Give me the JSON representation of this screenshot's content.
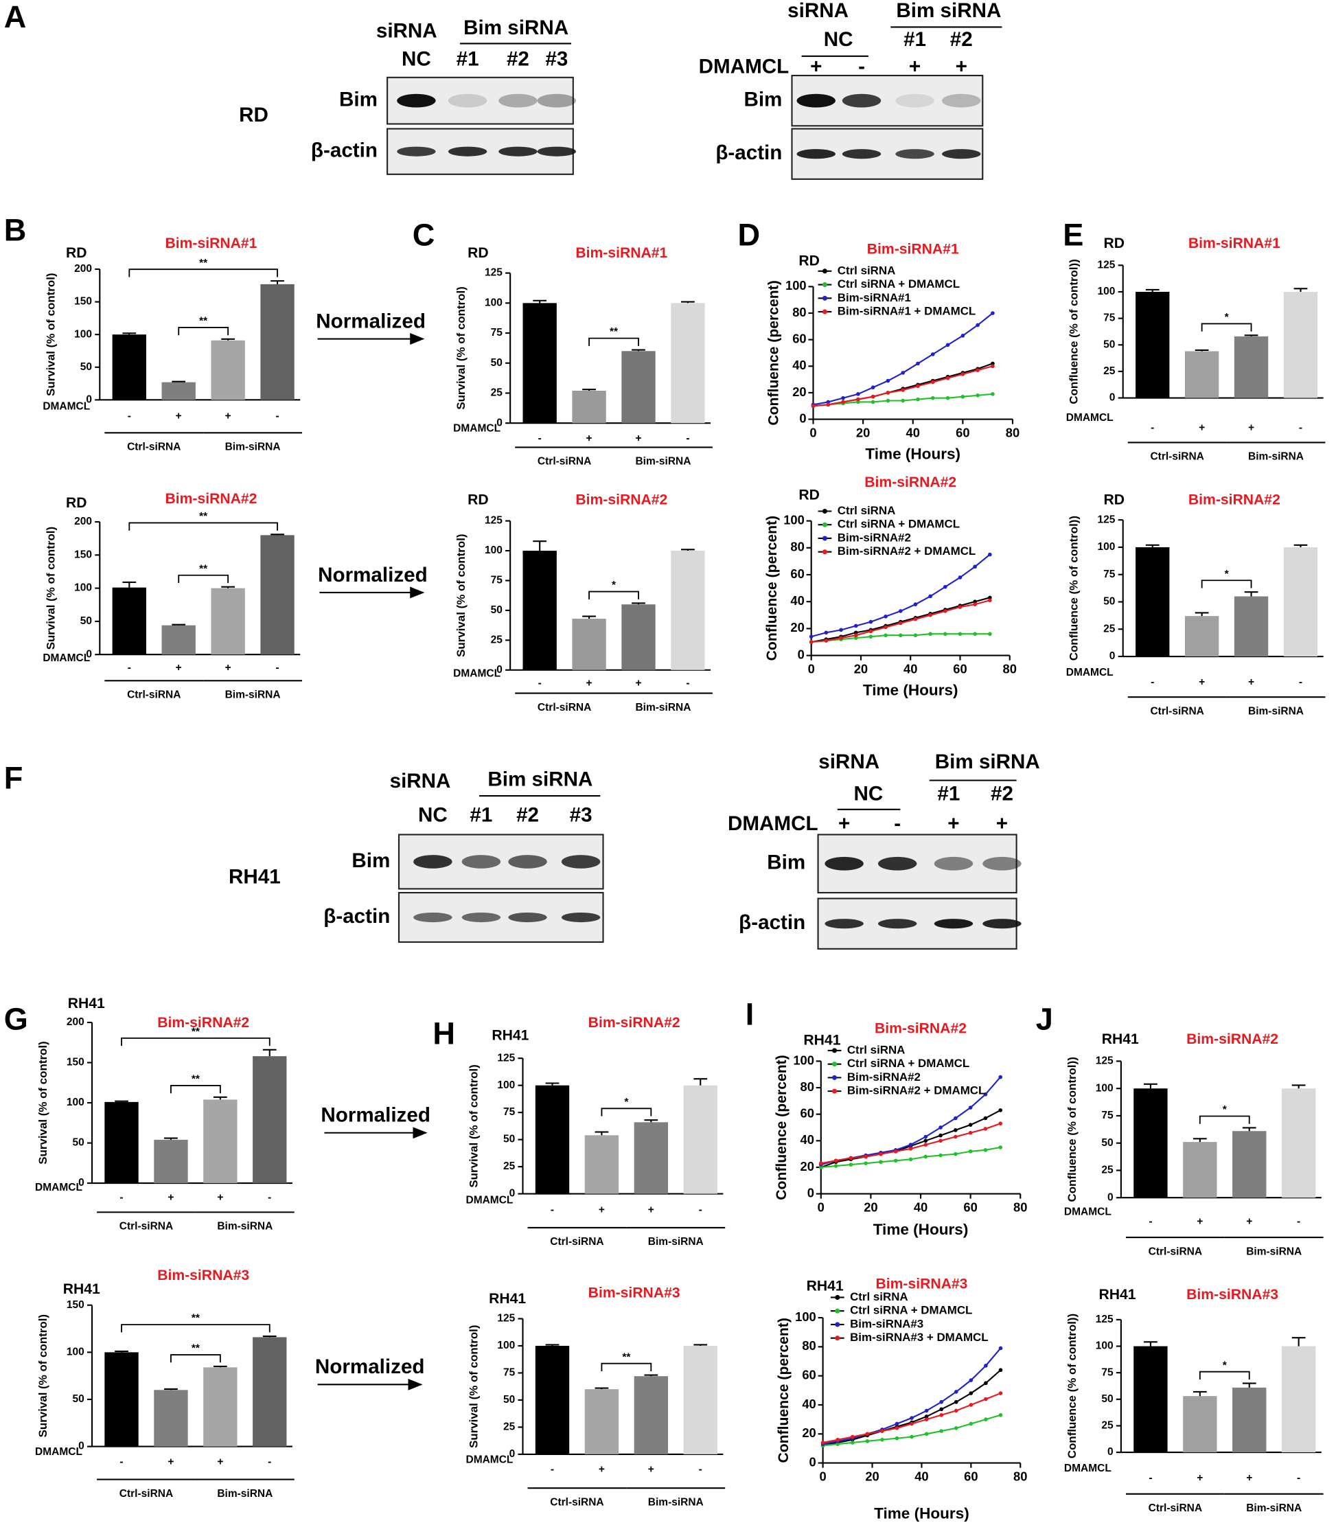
{
  "panel_letters": [
    "A",
    "B",
    "C",
    "D",
    "E",
    "F",
    "G",
    "H",
    "I",
    "J"
  ],
  "normalized": [
    "Normalized",
    "Normalized",
    "Normalized",
    "Normalized"
  ],
  "blots": [
    {
      "cell_line": "RD",
      "header": "siRNA",
      "group": "Bim siRNA",
      "lanes": [
        "NC",
        "#1",
        "#2",
        "#3"
      ],
      "rows": [
        "Bim",
        "β-actin"
      ]
    },
    {
      "header": "siRNA",
      "group": "Bim siRNA",
      "lanes": [
        "NC",
        "#1",
        "#2"
      ],
      "treatment": "DMAMCL",
      "signs": [
        "+",
        "-",
        "+",
        "+"
      ],
      "rows": [
        "Bim",
        "β-actin"
      ]
    },
    {
      "cell_line": "RH41",
      "header": "siRNA",
      "group": "Bim siRNA",
      "lanes": [
        "NC",
        "#1",
        "#2",
        "#3"
      ],
      "rows": [
        "Bim",
        "β-actin"
      ]
    },
    {
      "header": "siRNA",
      "group": "Bim siRNA",
      "lanes": [
        "NC",
        "#1",
        "#2"
      ],
      "treatment": "DMAMCL",
      "signs": [
        "+",
        "-",
        "+",
        "+"
      ],
      "rows": [
        "Bim",
        "β-actin"
      ]
    }
  ],
  "chart_data": [
    {
      "type": "bar",
      "label": "RD",
      "title": "Bim-siRNA#1",
      "title_color": "#e8191f",
      "ylabel": "Survival (% of control)",
      "ylim": [
        0,
        200
      ],
      "yticks": [
        0,
        50,
        100,
        150,
        200
      ],
      "categories": [
        "-",
        "+",
        "+",
        "-"
      ],
      "row_label": "DMAMCL",
      "groups": [
        "Ctrl-siRNA",
        "Bim-siRNA"
      ],
      "values": [
        100,
        27,
        91,
        177
      ],
      "errors": [
        2,
        1,
        2,
        5
      ],
      "colors": [
        "#000000",
        "#7f7f7f",
        "#a6a6a6",
        "#626262"
      ],
      "brackets": [
        {
          "from": 0,
          "to": 3,
          "label": "**"
        },
        {
          "from": 1,
          "to": 2,
          "label": "**"
        }
      ]
    },
    {
      "type": "bar",
      "label": "RD",
      "title": "Bim-siRNA#1",
      "title_color": "#e8191f",
      "ylabel": "Survival (% of control)",
      "ylim": [
        0,
        125
      ],
      "yticks": [
        0,
        25,
        50,
        75,
        100,
        125
      ],
      "categories": [
        "-",
        "+",
        "+",
        "-"
      ],
      "row_label": "DMAMCL",
      "groups": [
        "Ctrl-siRNA",
        "Bim-siRNA"
      ],
      "values": [
        100,
        27,
        60,
        100
      ],
      "errors": [
        2,
        1,
        1,
        1
      ],
      "colors": [
        "#000000",
        "#9a9a9a",
        "#767676",
        "#d9d9d9"
      ],
      "brackets": [
        {
          "from": 1,
          "to": 2,
          "label": "**"
        }
      ]
    },
    {
      "type": "line",
      "label": "RD",
      "title": "Bim-siRNA#1",
      "title_color": "#e8191f",
      "xlabel": "Time (Hours)",
      "ylabel": "Confluence (percent)",
      "x": [
        0,
        6,
        12,
        18,
        24,
        30,
        36,
        42,
        48,
        54,
        60,
        66,
        72
      ],
      "xlim": [
        0,
        80
      ],
      "xticks": [
        0,
        20,
        40,
        60,
        80
      ],
      "ylim": [
        0,
        100
      ],
      "yticks": [
        0,
        20,
        40,
        60,
        80,
        100
      ],
      "series": [
        {
          "name": "Ctrl siRNA",
          "color": "#000000",
          "values": [
            10,
            11,
            13,
            15,
            17,
            20,
            23,
            26,
            29,
            32,
            35,
            38,
            42
          ]
        },
        {
          "name": "Ctrl siRNA + DMAMCL",
          "color": "#22c02a",
          "values": [
            10,
            11,
            12,
            13,
            13,
            14,
            14,
            15,
            16,
            16,
            17,
            18,
            19
          ]
        },
        {
          "name": "Bim-siRNA#1",
          "color": "#1f22c8",
          "values": [
            11,
            13,
            16,
            19,
            24,
            29,
            35,
            42,
            49,
            56,
            63,
            71,
            80
          ]
        },
        {
          "name": "Bim-siRNA#1 + DMAMCL",
          "color": "#e8191f",
          "values": [
            10,
            11,
            13,
            15,
            17,
            20,
            22,
            25,
            28,
            31,
            34,
            37,
            40
          ]
        }
      ]
    },
    {
      "type": "bar",
      "label": "RD",
      "title": "Bim-siRNA#1",
      "title_color": "#e8191f",
      "ylabel": "Confluence (% of control))",
      "ylim": [
        0,
        125
      ],
      "yticks": [
        0,
        25,
        50,
        75,
        100,
        125
      ],
      "categories": [
        "-",
        "+",
        "+",
        "-"
      ],
      "row_label": "DMAMCL",
      "groups": [
        "Ctrl-siRNA",
        "Bim-siRNA"
      ],
      "values": [
        100,
        44,
        58,
        100
      ],
      "errors": [
        2,
        1,
        1,
        3
      ],
      "colors": [
        "#000000",
        "#a0a0a0",
        "#7f7f7f",
        "#d9d9d9"
      ],
      "brackets": [
        {
          "from": 1,
          "to": 2,
          "label": "*"
        }
      ]
    },
    {
      "type": "bar",
      "label": "RD",
      "title": "Bim-siRNA#2",
      "title_color": "#e8191f",
      "ylabel": "Survival (% of control)",
      "ylim": [
        0,
        200
      ],
      "yticks": [
        0,
        50,
        100,
        150,
        200
      ],
      "categories": [
        "-",
        "+",
        "+",
        "-"
      ],
      "row_label": "DMAMCL",
      "groups": [
        "Ctrl-siRNA",
        "Bim-siRNA"
      ],
      "values": [
        101,
        44,
        100,
        180
      ],
      "errors": [
        8,
        1,
        2,
        1
      ],
      "colors": [
        "#000000",
        "#7f7f7f",
        "#a6a6a6",
        "#626262"
      ],
      "brackets": [
        {
          "from": 0,
          "to": 3,
          "label": "**"
        },
        {
          "from": 1,
          "to": 2,
          "label": "**"
        }
      ]
    },
    {
      "type": "bar",
      "label": "RD",
      "title": "Bim-siRNA#2",
      "title_color": "#e8191f",
      "ylabel": "Survival (% of control)",
      "ylim": [
        0,
        125
      ],
      "yticks": [
        0,
        25,
        50,
        75,
        100,
        125
      ],
      "categories": [
        "-",
        "+",
        "+",
        "-"
      ],
      "row_label": "DMAMCL",
      "groups": [
        "Ctrl-siRNA",
        "Bim-siRNA"
      ],
      "values": [
        100,
        43,
        55,
        100
      ],
      "errors": [
        8,
        2,
        1,
        1
      ],
      "colors": [
        "#000000",
        "#9a9a9a",
        "#767676",
        "#d9d9d9"
      ],
      "brackets": [
        {
          "from": 1,
          "to": 2,
          "label": "*"
        }
      ]
    },
    {
      "type": "line",
      "label": "RD",
      "title": "Bim-siRNA#2",
      "title_color": "#e8191f",
      "xlabel": "Time (Hours)",
      "ylabel": "Confluence (percent)",
      "x": [
        0,
        6,
        12,
        18,
        24,
        30,
        36,
        42,
        48,
        54,
        60,
        66,
        72
      ],
      "xlim": [
        0,
        80
      ],
      "xticks": [
        0,
        20,
        40,
        60,
        80
      ],
      "ylim": [
        0,
        100
      ],
      "yticks": [
        0,
        20,
        40,
        60,
        80,
        100
      ],
      "series": [
        {
          "name": "Ctrl siRNA",
          "color": "#000000",
          "values": [
            10,
            12,
            14,
            17,
            19,
            22,
            25,
            28,
            31,
            34,
            37,
            40,
            43
          ]
        },
        {
          "name": "Ctrl siRNA + DMAMCL",
          "color": "#22c02a",
          "values": [
            10,
            11,
            12,
            13,
            14,
            15,
            15,
            15,
            16,
            16,
            16,
            16,
            16
          ]
        },
        {
          "name": "Bim-siRNA#2",
          "color": "#1f22c8",
          "values": [
            14,
            17,
            19,
            22,
            25,
            29,
            33,
            38,
            44,
            51,
            58,
            66,
            75
          ]
        },
        {
          "name": "Bim-siRNA#2 + DMAMCL",
          "color": "#e8191f",
          "values": [
            10,
            11,
            13,
            15,
            18,
            21,
            24,
            27,
            30,
            33,
            36,
            38,
            41
          ]
        }
      ]
    },
    {
      "type": "bar",
      "label": "RD",
      "title": "Bim-siRNA#2",
      "title_color": "#e8191f",
      "ylabel": "Confluence (% of control))",
      "ylim": [
        0,
        125
      ],
      "yticks": [
        0,
        25,
        50,
        75,
        100,
        125
      ],
      "categories": [
        "-",
        "+",
        "+",
        "-"
      ],
      "row_label": "DMAMCL",
      "groups": [
        "Ctrl-siRNA",
        "Bim-siRNA"
      ],
      "values": [
        100,
        37,
        55,
        100
      ],
      "errors": [
        2,
        3,
        4,
        2
      ],
      "colors": [
        "#000000",
        "#a0a0a0",
        "#7f7f7f",
        "#d9d9d9"
      ],
      "brackets": [
        {
          "from": 1,
          "to": 2,
          "label": "*"
        }
      ]
    },
    {
      "type": "bar",
      "label": "RH41",
      "title": "Bim-siRNA#2",
      "title_color": "#e8191f",
      "ylabel": "Survival (% of control)",
      "ylim": [
        0,
        200
      ],
      "yticks": [
        0,
        50,
        100,
        150,
        200
      ],
      "categories": [
        "-",
        "+",
        "+",
        "-"
      ],
      "row_label": "DMAMCL",
      "groups": [
        "Ctrl-siRNA",
        "Bim-siRNA"
      ],
      "values": [
        101,
        54,
        104,
        158
      ],
      "errors": [
        1,
        2,
        3,
        8
      ],
      "colors": [
        "#000000",
        "#7f7f7f",
        "#a6a6a6",
        "#626262"
      ],
      "brackets": [
        {
          "from": 0,
          "to": 3,
          "label": "**"
        },
        {
          "from": 1,
          "to": 2,
          "label": "**"
        }
      ]
    },
    {
      "type": "bar",
      "label": "RH41",
      "title": "Bim-siRNA#2",
      "title_color": "#e8191f",
      "ylabel": "Survival (% of control)",
      "ylim": [
        0,
        125
      ],
      "yticks": [
        0,
        25,
        50,
        75,
        100,
        125
      ],
      "categories": [
        "-",
        "+",
        "+",
        "-"
      ],
      "row_label": "DMAMCL",
      "groups": [
        "Ctrl-siRNA",
        "Bim-siRNA"
      ],
      "values": [
        100,
        54,
        66,
        100
      ],
      "errors": [
        2,
        3,
        2,
        6
      ],
      "colors": [
        "#000000",
        "#a6a6a6",
        "#7f7f7f",
        "#d9d9d9"
      ],
      "brackets": [
        {
          "from": 1,
          "to": 2,
          "label": "*"
        }
      ]
    },
    {
      "type": "line",
      "label": "RH41",
      "title": "Bim-siRNA#2",
      "title_color": "#e8191f",
      "xlabel": "Time (Hours)",
      "ylabel": "Confluence (percent)",
      "x": [
        0,
        6,
        12,
        18,
        24,
        30,
        36,
        42,
        48,
        54,
        60,
        66,
        72
      ],
      "xlim": [
        0,
        80
      ],
      "xticks": [
        0,
        20,
        40,
        60,
        80
      ],
      "ylim": [
        0,
        100
      ],
      "yticks": [
        0,
        20,
        40,
        60,
        80,
        100
      ],
      "series": [
        {
          "name": "Ctrl siRNA",
          "color": "#000000",
          "values": [
            20,
            24,
            26,
            28,
            30,
            32,
            36,
            40,
            44,
            48,
            52,
            57,
            63
          ]
        },
        {
          "name": "Ctrl siRNA + DMAMCL",
          "color": "#22c02a",
          "values": [
            20,
            21,
            22,
            23,
            24,
            25,
            26,
            28,
            29,
            30,
            32,
            33,
            35
          ]
        },
        {
          "name": "Bim-siRNA#2",
          "color": "#1f22c8",
          "values": [
            22,
            25,
            27,
            29,
            31,
            33,
            37,
            43,
            50,
            57,
            65,
            75,
            88
          ]
        },
        {
          "name": "Bim-siRNA#2 + DMAMCL",
          "color": "#e8191f",
          "values": [
            23,
            25,
            27,
            28,
            30,
            32,
            34,
            37,
            40,
            43,
            46,
            49,
            53
          ]
        }
      ]
    },
    {
      "type": "bar",
      "label": "RH41",
      "title": "Bim-siRNA#2",
      "title_color": "#e8191f",
      "ylabel": "Confluence (% of control))",
      "ylim": [
        0,
        125
      ],
      "yticks": [
        0,
        25,
        50,
        75,
        100,
        125
      ],
      "categories": [
        "-",
        "+",
        "+",
        "-"
      ],
      "row_label": "DMAMCL",
      "groups": [
        "Ctrl-siRNA",
        "Bim-siRNA"
      ],
      "values": [
        100,
        51,
        61,
        100
      ],
      "errors": [
        4,
        3,
        3,
        3
      ],
      "colors": [
        "#000000",
        "#a0a0a0",
        "#7f7f7f",
        "#d9d9d9"
      ],
      "brackets": [
        {
          "from": 1,
          "to": 2,
          "label": "*"
        }
      ]
    },
    {
      "type": "bar",
      "label": "RH41",
      "title": "Bim-siRNA#3",
      "title_color": "#e8191f",
      "ylabel": "Survival (% of control)",
      "ylim": [
        0,
        150
      ],
      "yticks": [
        0,
        50,
        100,
        150
      ],
      "categories": [
        "-",
        "+",
        "+",
        "-"
      ],
      "row_label": "DMAMCL",
      "groups": [
        "Ctrl-siRNA",
        "Bim-siRNA"
      ],
      "values": [
        100,
        60,
        84,
        116
      ],
      "errors": [
        1,
        1,
        1,
        1
      ],
      "colors": [
        "#000000",
        "#7f7f7f",
        "#a6a6a6",
        "#626262"
      ],
      "brackets": [
        {
          "from": 0,
          "to": 3,
          "label": "**"
        },
        {
          "from": 1,
          "to": 2,
          "label": "**"
        }
      ]
    },
    {
      "type": "bar",
      "label": "RH41",
      "title": "Bim-siRNA#3",
      "title_color": "#e8191f",
      "ylabel": "Survival (% of control)",
      "ylim": [
        0,
        125
      ],
      "yticks": [
        0,
        25,
        50,
        75,
        100,
        125
      ],
      "categories": [
        "-",
        "+",
        "+",
        "-"
      ],
      "row_label": "DMAMCL",
      "groups": [
        "Ctrl-siRNA",
        "Bim-siRNA"
      ],
      "values": [
        100,
        60,
        72,
        100
      ],
      "errors": [
        1,
        1,
        1,
        1
      ],
      "colors": [
        "#000000",
        "#a6a6a6",
        "#7f7f7f",
        "#d9d9d9"
      ],
      "brackets": [
        {
          "from": 1,
          "to": 2,
          "label": "**"
        }
      ]
    },
    {
      "type": "line",
      "label": "RH41",
      "title": "Bim-siRNA#3",
      "title_color": "#e8191f",
      "xlabel": "Time (Hours)",
      "ylabel": "Confluence (percent)",
      "x": [
        0,
        6,
        12,
        18,
        24,
        30,
        36,
        42,
        48,
        54,
        60,
        66,
        72
      ],
      "xlim": [
        0,
        80
      ],
      "xticks": [
        0,
        20,
        40,
        60,
        80
      ],
      "ylim": [
        0,
        100
      ],
      "yticks": [
        0,
        20,
        40,
        60,
        80,
        100
      ],
      "series": [
        {
          "name": "Ctrl siRNA",
          "color": "#000000",
          "values": [
            12,
            14,
            16,
            19,
            22,
            25,
            28,
            32,
            37,
            42,
            48,
            55,
            64
          ]
        },
        {
          "name": "Ctrl siRNA + DMAMCL",
          "color": "#22c02a",
          "values": [
            12,
            13,
            14,
            15,
            16,
            17,
            18,
            20,
            22,
            24,
            27,
            30,
            33
          ]
        },
        {
          "name": "Bim-siRNA#3",
          "color": "#1f22c8",
          "values": [
            13,
            15,
            17,
            20,
            23,
            27,
            31,
            36,
            42,
            49,
            57,
            67,
            79
          ]
        },
        {
          "name": "Bim-siRNA#3 + DMAMCL",
          "color": "#e8191f",
          "values": [
            14,
            16,
            18,
            20,
            22,
            24,
            27,
            30,
            33,
            36,
            40,
            44,
            48
          ]
        }
      ]
    },
    {
      "type": "bar",
      "label": "RH41",
      "title": "Bim-siRNA#3",
      "title_color": "#e8191f",
      "ylabel": "Confluence (% of control))",
      "ylim": [
        0,
        125
      ],
      "yticks": [
        0,
        25,
        50,
        75,
        100,
        125
      ],
      "categories": [
        "-",
        "+",
        "+",
        "-"
      ],
      "row_label": "DMAMCL",
      "groups": [
        "Ctrl-siRNA",
        "Bim-siRNA"
      ],
      "values": [
        100,
        53,
        61,
        100
      ],
      "errors": [
        4,
        4,
        4,
        8
      ],
      "colors": [
        "#000000",
        "#a0a0a0",
        "#7f7f7f",
        "#d9d9d9"
      ],
      "brackets": [
        {
          "from": 1,
          "to": 2,
          "label": "*"
        }
      ]
    }
  ]
}
